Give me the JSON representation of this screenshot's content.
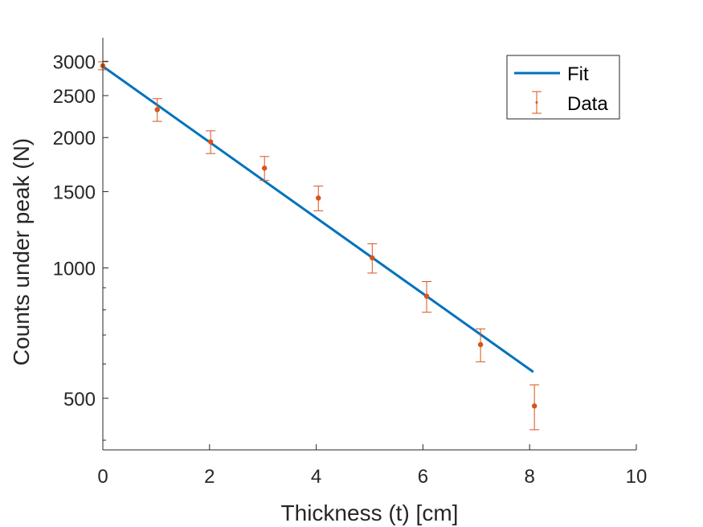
{
  "chart_data": {
    "type": "scatter",
    "title": "",
    "xlabel": "Thickness (t) [cm]",
    "ylabel": "Counts under peak (N)",
    "xlim": [
      0,
      10
    ],
    "ylim": [
      380,
      3400
    ],
    "yscale": "log",
    "xticks": [
      0,
      2,
      4,
      6,
      8,
      10
    ],
    "xtick_labels": [
      "0",
      "2",
      "4",
      "6",
      "8",
      "10"
    ],
    "yticks_major": [
      500,
      1000,
      1500,
      2000,
      2500,
      3000
    ],
    "ytick_labels": [
      "500",
      "1000",
      "1500",
      "2000",
      "2500",
      "3000"
    ],
    "yticks_minor": [
      400,
      600,
      700,
      800,
      900
    ],
    "grid": false,
    "legend_position": "top-right",
    "series": [
      {
        "name": "Fit",
        "kind": "line",
        "color": "#0072BD",
        "x": [
          0,
          8.07
        ],
        "y": [
          2920,
          575
        ]
      },
      {
        "name": "Data",
        "kind": "errorbar",
        "color": "#D95319",
        "x": [
          0,
          1.02,
          2.02,
          3.03,
          4.04,
          5.05,
          6.07,
          7.08,
          8.09
        ],
        "y": [
          2930,
          2320,
          1955,
          1700,
          1450,
          1055,
          860,
          665,
          480
        ],
        "yerr": [
          62,
          140,
          118,
          108,
          95,
          82,
          70,
          58,
          57
        ]
      }
    ]
  }
}
